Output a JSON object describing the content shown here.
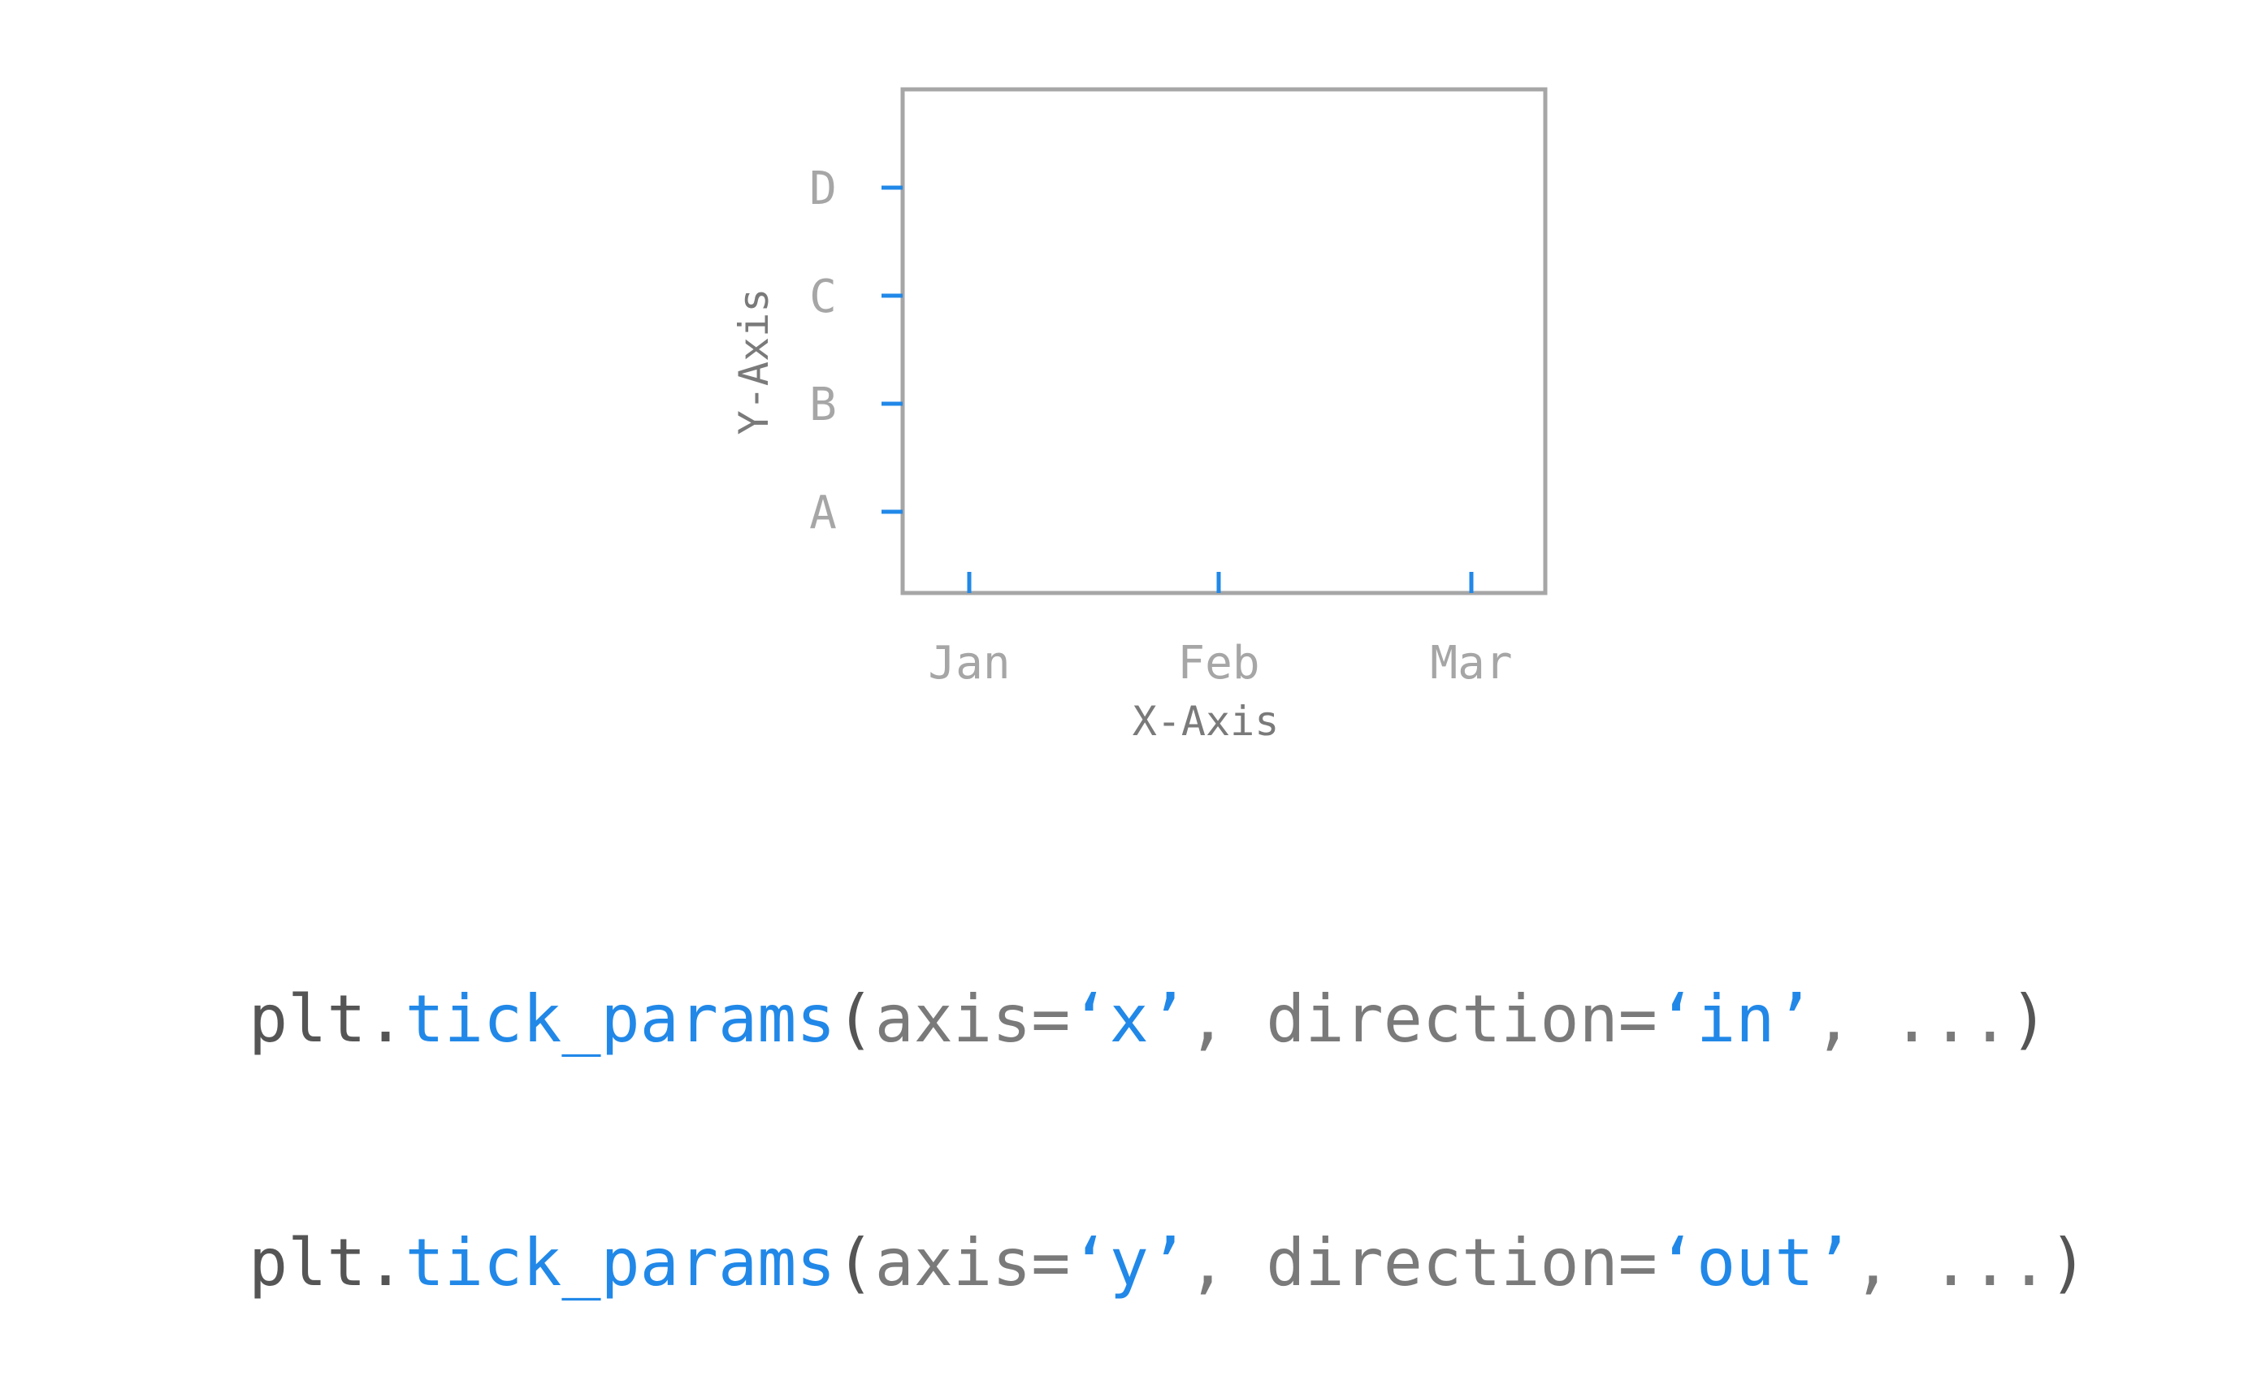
{
  "colors": {
    "frame": "#a6a6a6",
    "tick": "#2188e8",
    "tick_label": "#a6a6a6",
    "axis_label": "#7a7a7a",
    "code_object": "#555555",
    "code_function": "#2188e8",
    "code_text": "#7a7a7a"
  },
  "chart_data": {
    "type": "scatter",
    "title": "",
    "xlabel": "X-Axis",
    "ylabel": "Y-Axis",
    "categories_x": [
      "Jan",
      "Feb",
      "Mar"
    ],
    "categories_y": [
      "A",
      "B",
      "C",
      "D"
    ],
    "x_tick_direction": "in",
    "y_tick_direction": "out",
    "grid": false,
    "series": []
  },
  "code": {
    "lines": [
      {
        "obj": "plt.",
        "fn": "tick_params",
        "open": "(",
        "arg1_key": "axis=",
        "arg1_val": "‘x’",
        "mid": ", direction=",
        "arg2_val": "‘in’",
        "tail": ", ...",
        "close": ")"
      },
      {
        "obj": "plt.",
        "fn": "tick_params",
        "open": "(",
        "arg1_key": "axis=",
        "arg1_val": "‘y’",
        "mid": ", direction=",
        "arg2_val": "‘out’",
        "tail": ", ...",
        "close": ")"
      }
    ]
  }
}
